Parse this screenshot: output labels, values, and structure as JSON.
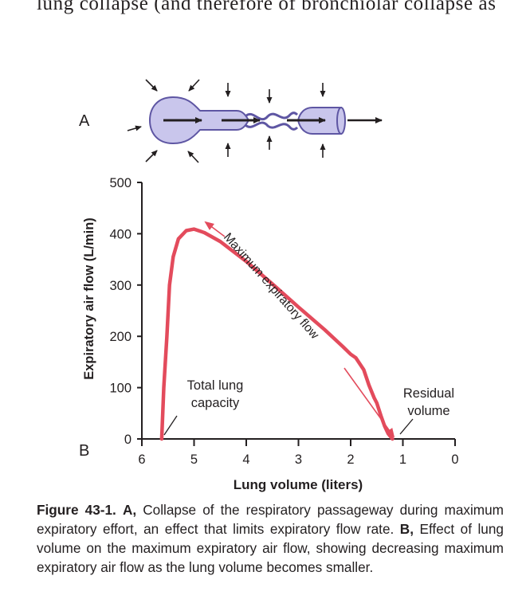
{
  "header_text": {
    "prefix": "",
    "text": "lung collapse (and therefore of bronchiolar collapse as"
  },
  "panel_a": {
    "label": "A"
  },
  "panel_b": {
    "label": "B"
  },
  "colors": {
    "curve": "#e34b5c",
    "tube_fill": "#c9c6ec",
    "tube_stroke": "#5e56a3",
    "text": "#231f20"
  },
  "chart_data": {
    "type": "line",
    "title": "",
    "xlabel": "Lung volume (liters)",
    "ylabel": "Expiratory air flow (L/min)",
    "x_reversed": true,
    "xlim": [
      6,
      0
    ],
    "ylim": [
      0,
      500
    ],
    "xticks": [
      "6",
      "5",
      "4",
      "3",
      "2",
      "1",
      "0"
    ],
    "yticks": [
      "0",
      "100",
      "200",
      "300",
      "400",
      "500"
    ],
    "series": [
      {
        "x": [
          5.62,
          5.58,
          5.52,
          5.47,
          5.4,
          5.3,
          5.15,
          5.0,
          4.8,
          4.5,
          4.0,
          3.5,
          3.0,
          2.5,
          2.15,
          2.0,
          1.9,
          1.75,
          1.65,
          1.55,
          1.5,
          1.42,
          1.35,
          1.28,
          1.2
        ],
        "y": [
          0,
          100,
          200,
          300,
          355,
          390,
          406,
          409,
          402,
          385,
          346,
          302,
          257,
          213,
          180,
          165,
          158,
          135,
          105,
          80,
          70,
          45,
          25,
          10,
          0
        ]
      }
    ],
    "annotations": {
      "max_flow": "Maximum expiratory flow",
      "tlc_line1": "Total lung",
      "tlc_line2": "capacity",
      "rv_line1": "Residual",
      "rv_line2": "volume"
    }
  },
  "caption": {
    "fig_label": "Figure 43-1.",
    "a_label": "A,",
    "a_text": " Collapse of the respiratory passageway during maximum expiratory effort, an effect that limits expiratory flow rate. ",
    "b_label": "B,",
    "b_text": " Effect of lung volume on the maximum expiratory air flow, showing decreasing maximum expiratory air flow as the lung volume becomes smaller."
  }
}
